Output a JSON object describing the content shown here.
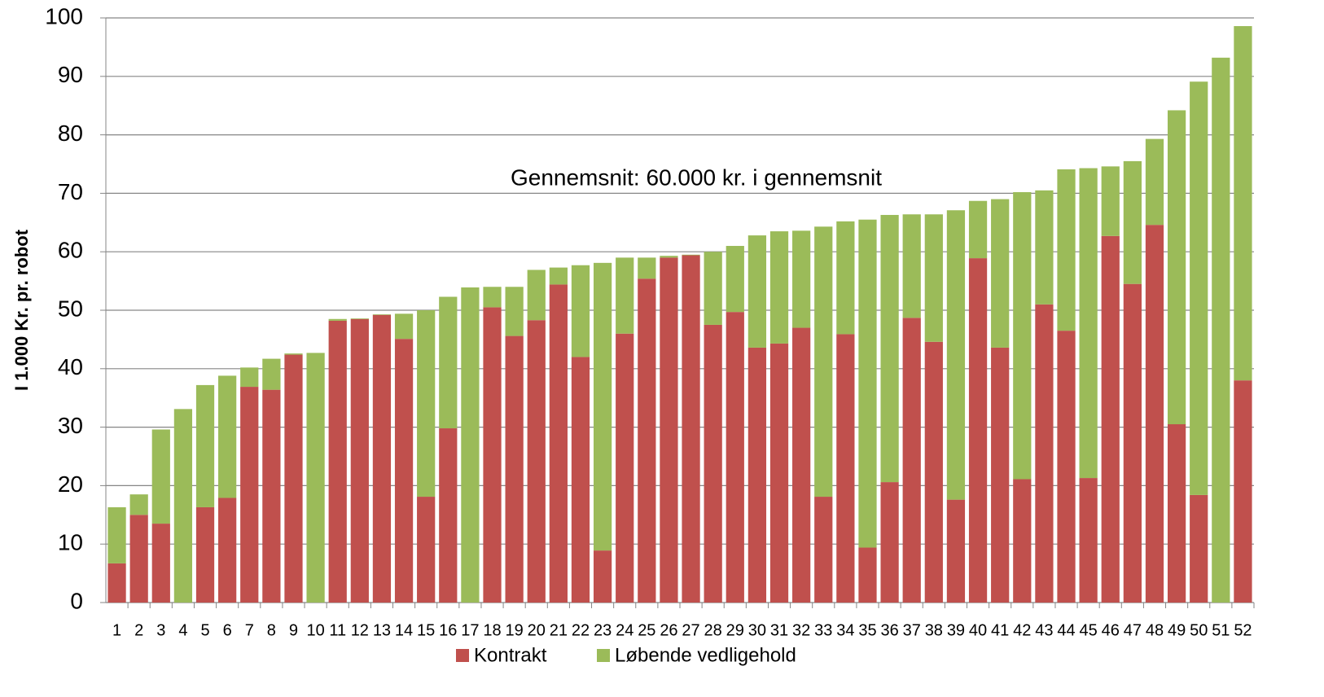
{
  "chart_data": {
    "type": "stacked_bar",
    "y_label": "I 1.000 Kr. pr. robot",
    "annotation": "Gennemsnit: 60.000 kr. i gennemsnit",
    "categories": [
      "1",
      "2",
      "3",
      "4",
      "5",
      "6",
      "7",
      "8",
      "9",
      "10",
      "11",
      "12",
      "13",
      "14",
      "15",
      "16",
      "17",
      "18",
      "19",
      "20",
      "21",
      "22",
      "23",
      "24",
      "25",
      "26",
      "27",
      "28",
      "29",
      "30",
      "31",
      "32",
      "33",
      "34",
      "35",
      "36",
      "37",
      "38",
      "39",
      "40",
      "41",
      "42",
      "43",
      "44",
      "45",
      "46",
      "47",
      "48",
      "49",
      "50",
      "51",
      "52"
    ],
    "series": [
      {
        "name": "Kontrakt",
        "color": "#c0504d",
        "values": [
          6.7,
          15,
          13.5,
          0,
          16.3,
          17.9,
          36.9,
          36.4,
          42.4,
          0,
          48.2,
          48.5,
          49.2,
          45.1,
          18.1,
          29.8,
          0,
          50.5,
          45.6,
          48.3,
          54.4,
          42,
          8.9,
          46,
          55.4,
          59,
          59.4,
          47.5,
          49.7,
          43.6,
          44.3,
          47,
          18.1,
          45.9,
          9.4,
          20.6,
          48.7,
          44.6,
          17.6,
          58.9,
          43.6,
          21.1,
          51,
          46.5,
          21.3,
          62.7,
          54.5,
          64.6,
          30.5,
          18.4,
          0,
          38
        ]
      },
      {
        "name": "Løbende vedligehold",
        "color": "#9bbb59",
        "values": [
          9.6,
          3.5,
          16.1,
          33.1,
          20.9,
          20.9,
          3.3,
          5.3,
          0.2,
          42.7,
          0.3,
          0.1,
          0.1,
          4.3,
          31.9,
          22.5,
          53.9,
          3.5,
          8.4,
          8.6,
          2.9,
          15.7,
          49.2,
          13,
          3.6,
          0.3,
          0.1,
          12.5,
          11.3,
          19.2,
          19.2,
          16.6,
          46.2,
          19.3,
          56.1,
          45.7,
          17.7,
          21.8,
          49.5,
          9.8,
          25.4,
          49.1,
          19.5,
          27.6,
          53,
          11.9,
          21,
          14.7,
          53.7,
          70.7,
          93.2,
          60.6
        ]
      }
    ],
    "ylim": [
      0,
      100
    ],
    "yticks": [
      0,
      10,
      20,
      30,
      40,
      50,
      60,
      70,
      80,
      90,
      100
    ],
    "grid": true
  }
}
